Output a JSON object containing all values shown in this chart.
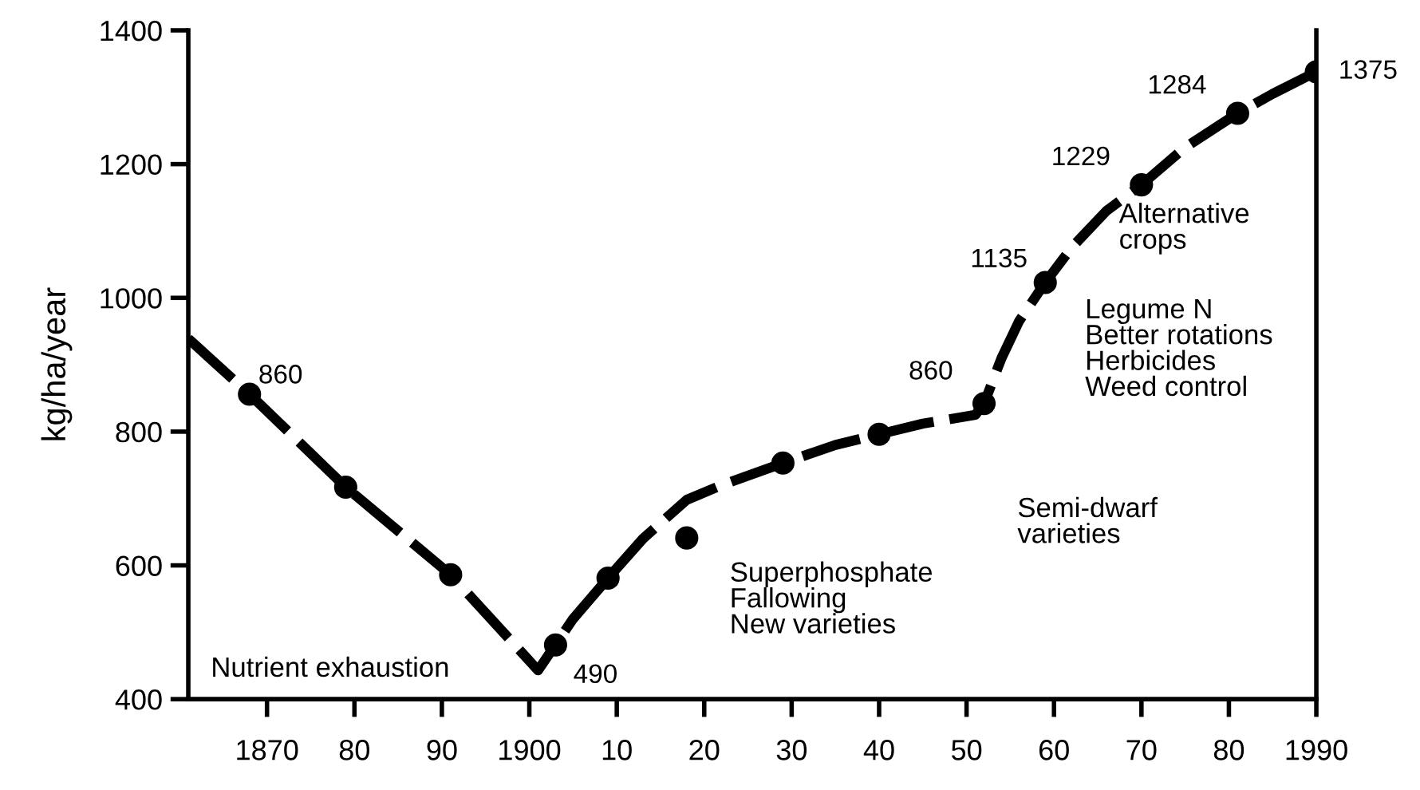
{
  "chart_data": {
    "type": "line",
    "ylabel": "kg/ha/year",
    "xlim": [
      1861,
      1990
    ],
    "ylim": [
      400,
      1400
    ],
    "xticks": [
      {
        "value": 1870,
        "label": "1870"
      },
      {
        "value": 1880,
        "label": "80"
      },
      {
        "value": 1890,
        "label": "90"
      },
      {
        "value": 1900,
        "label": "1900"
      },
      {
        "value": 1910,
        "label": "10"
      },
      {
        "value": 1920,
        "label": "20"
      },
      {
        "value": 1930,
        "label": "30"
      },
      {
        "value": 1940,
        "label": "40"
      },
      {
        "value": 1950,
        "label": "50"
      },
      {
        "value": 1960,
        "label": "60"
      },
      {
        "value": 1970,
        "label": "70"
      },
      {
        "value": 1980,
        "label": "80"
      },
      {
        "value": 1990,
        "label": "1990"
      }
    ],
    "yticks": [
      400,
      600,
      800,
      1000,
      1200,
      1400
    ],
    "grid": false,
    "legend": false,
    "series": [
      {
        "color": "#000000",
        "line_style": "dashed",
        "marker": "none",
        "x": [
          1861,
          1868,
          1879,
          1891,
          1901,
          1905,
          1909,
          1913,
          1918,
          1922,
          1929,
          1935,
          1940,
          1945,
          1951,
          1952,
          1954,
          1956,
          1959,
          1962,
          1966,
          1970,
          1975,
          1981,
          1985,
          1990
        ],
        "values": [
          939,
          856,
          717,
          586,
          443,
          520,
          581,
          640,
          698,
          720,
          753,
          780,
          796,
          812,
          825,
          842,
          910,
          965,
          1023,
          1075,
          1130,
          1169,
          1225,
          1276,
          1305,
          1338
        ]
      },
      {
        "type": "scatter",
        "color": "#000000",
        "marker": "circle",
        "x": [
          1868,
          1879,
          1891,
          1903,
          1909,
          1918,
          1929,
          1940,
          1952,
          1959,
          1970,
          1981,
          1990
        ],
        "values": [
          856,
          717,
          586,
          481,
          581,
          641,
          753,
          796,
          842,
          1023,
          1169,
          1276,
          1338
        ]
      }
    ],
    "annotations": [
      {
        "text": "860",
        "x": 1868,
        "y": 856
      },
      {
        "text": "490",
        "x": 1903,
        "y": 481
      },
      {
        "text": "860",
        "x": 1952,
        "y": 842
      },
      {
        "text": "1135",
        "x": 1959,
        "y": 1023
      },
      {
        "text": "1229",
        "x": 1970,
        "y": 1169
      },
      {
        "text": "1284",
        "x": 1981,
        "y": 1276
      },
      {
        "text": "1375",
        "x": 1990,
        "y": 1338
      },
      "Nutrient exhaustion",
      "Superphosphate\nFallowing\nNew varieties",
      "Semi-dwarf\nvarieties",
      "Legume N\nBetter rotations\nHerbicides\nWeed control",
      "Alternative\ncrops"
    ]
  }
}
